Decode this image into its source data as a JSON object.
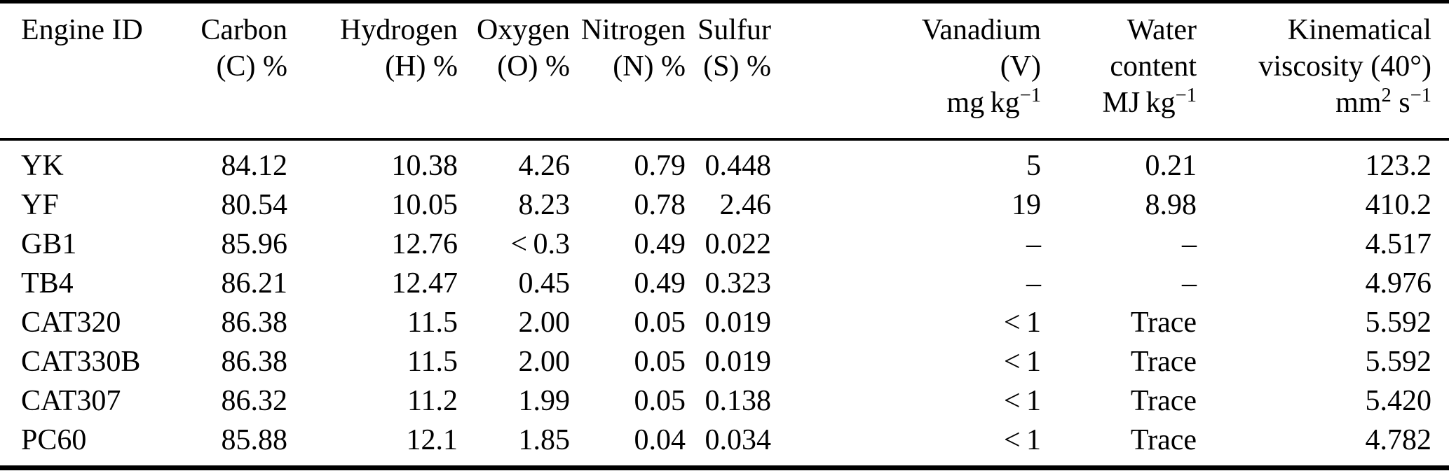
{
  "colors": {
    "text": "#000000",
    "background": "#ffffff",
    "rule": "#000000"
  },
  "table": {
    "columns": [
      {
        "id": "engine-id",
        "align": "left",
        "lines": [
          [
            {
              "t": "Engine ID"
            }
          ]
        ]
      },
      {
        "id": "carbon",
        "align": "right",
        "lines": [
          [
            {
              "t": "Carbon"
            }
          ],
          [
            {
              "t": "(C) %"
            }
          ]
        ]
      },
      {
        "id": "hydrogen",
        "align": "right",
        "lines": [
          [
            {
              "t": "Hydrogen"
            }
          ],
          [
            {
              "t": "(H) %"
            }
          ]
        ]
      },
      {
        "id": "oxygen",
        "align": "right",
        "lines": [
          [
            {
              "t": "Oxygen"
            }
          ],
          [
            {
              "t": "(O) %"
            }
          ]
        ]
      },
      {
        "id": "nitrogen",
        "align": "right",
        "lines": [
          [
            {
              "t": "Nitrogen"
            }
          ],
          [
            {
              "t": "(N) %"
            }
          ]
        ]
      },
      {
        "id": "sulfur",
        "align": "right",
        "lines": [
          [
            {
              "t": "Sulfur"
            }
          ],
          [
            {
              "t": "(S) %"
            }
          ]
        ]
      },
      {
        "id": "vanadium",
        "align": "right",
        "lines": [
          [
            {
              "t": "Vanadium"
            }
          ],
          [
            {
              "t": "(V)"
            }
          ],
          [
            {
              "t": "mg kg"
            },
            {
              "t": "−1",
              "sup": true
            }
          ]
        ]
      },
      {
        "id": "water-content",
        "align": "right",
        "lines": [
          [
            {
              "t": "Water"
            }
          ],
          [
            {
              "t": "content"
            }
          ],
          [
            {
              "t": "MJ kg"
            },
            {
              "t": "−1",
              "sup": true
            }
          ]
        ]
      },
      {
        "id": "kinematical-viscosity",
        "align": "right",
        "lines": [
          [
            {
              "t": "Kinematical"
            }
          ],
          [
            {
              "t": "viscosity (40°)"
            }
          ],
          [
            {
              "t": "mm"
            },
            {
              "t": "2",
              "sup": true
            },
            {
              "t": " s"
            },
            {
              "t": "−1",
              "sup": true
            }
          ]
        ]
      }
    ],
    "rows": [
      [
        "YK",
        "84.12",
        "10.38",
        "4.26",
        "0.79",
        "0.448",
        "5",
        "0.21",
        "123.2"
      ],
      [
        "YF",
        "80.54",
        "10.05",
        "8.23",
        "0.78",
        "2.46",
        "19",
        "8.98",
        "410.2"
      ],
      [
        "GB1",
        "85.96",
        "12.76",
        "< 0.3",
        "0.49",
        "0.022",
        "–",
        "–",
        "4.517"
      ],
      [
        "TB4",
        "86.21",
        "12.47",
        "0.45",
        "0.49",
        "0.323",
        "–",
        "–",
        "4.976"
      ],
      [
        "CAT320",
        "86.38",
        "11.5",
        "2.00",
        "0.05",
        "0.019",
        "< 1",
        "Trace",
        "5.592"
      ],
      [
        "CAT330B",
        "86.38",
        "11.5",
        "2.00",
        "0.05",
        "0.019",
        "< 1",
        "Trace",
        "5.592"
      ],
      [
        "CAT307",
        "86.32",
        "11.2",
        "1.99",
        "0.05",
        "0.138",
        "< 1",
        "Trace",
        "5.420"
      ],
      [
        "PC60",
        "85.88",
        "12.1",
        "1.85",
        "0.04",
        "0.034",
        "< 1",
        "Trace",
        "4.782"
      ]
    ]
  }
}
